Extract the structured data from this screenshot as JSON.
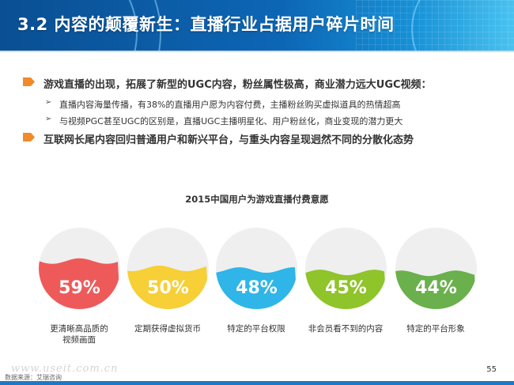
{
  "header": {
    "title": "3.2 内容的颠覆新生：直播行业占据用户碎片时间"
  },
  "bullets": [
    {
      "text": "游戏直播的出现，拓展了新型的UGC内容，粉丝属性极高，商业潜力远大UGC视频：",
      "subs": [
        "直播内容海量传播，有38%的直播用户愿为内容付费，主播粉丝购买虚拟道具的热情超高",
        "与视频PGC甚至UGC的区别是，直播UGC主播明星化、用户粉丝化，商业变现的潜力更大"
      ]
    },
    {
      "text": "互联网长尾内容回归普通用户和新兴平台，与重头内容呈现迥然不同的分散化态势",
      "subs": []
    }
  ],
  "colors": {
    "bullet_marker": "#f08a2a",
    "header_bg": "#0d66b5"
  },
  "chart_data": {
    "type": "bar",
    "title": "2015中国用户为游戏直播付费意愿",
    "categories": [
      "更清晰高品质的视频画面",
      "定期获得虚拟货币",
      "特定的平台权限",
      "非会员看不到的内容",
      "特定的平台形象"
    ],
    "category_lines": [
      [
        "更清晰高品质的",
        "视频画面"
      ],
      [
        "定期获得虚拟货币"
      ],
      [
        "特定的平台权限"
      ],
      [
        "非会员看不到的内容"
      ],
      [
        "特定的平台形象"
      ]
    ],
    "values": [
      59,
      50,
      48,
      45,
      44
    ],
    "value_labels": [
      "59%",
      "50%",
      "48%",
      "45%",
      "44%"
    ],
    "colors": [
      "#ee5a5a",
      "#f7cf36",
      "#2fb5e8",
      "#8fc42a",
      "#6ab04c"
    ],
    "ylim": [
      0,
      100
    ]
  },
  "footer": {
    "source": "数据来源：艾瑞咨询",
    "page": "55",
    "watermark": "www.useit.com.cn"
  }
}
